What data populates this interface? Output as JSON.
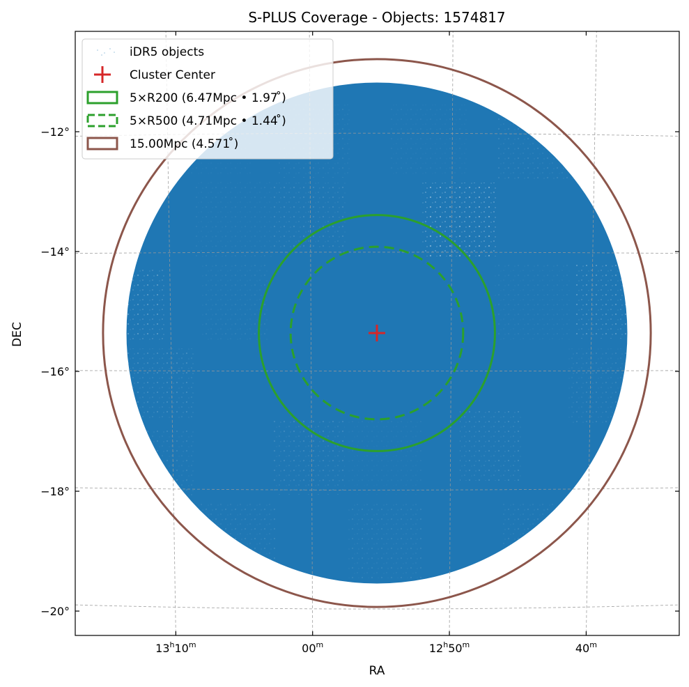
{
  "chart_data": {
    "type": "scatter",
    "title": "S-PLUS Coverage - Objects: 1574817",
    "xlabel": "RA",
    "ylabel": "DEC",
    "projection": "WCS (RA/DEC sky plot)",
    "grid": true,
    "legend_position": "top-left",
    "x_ticks": [
      {
        "main": "13",
        "sup1": "h",
        "min": "10",
        "sup2": "m",
        "ra_min": 790
      },
      {
        "main": "",
        "sup1": "",
        "min": "00",
        "sup2": "m",
        "ra_min": 780
      },
      {
        "main": "12",
        "sup1": "h",
        "min": "50",
        "sup2": "m",
        "ra_min": 770
      },
      {
        "main": "",
        "sup1": "",
        "min": "40",
        "sup2": "m",
        "ra_min": 760
      }
    ],
    "y_ticks": [
      {
        "label": "−12°",
        "dec": -12
      },
      {
        "label": "−14°",
        "dec": -14
      },
      {
        "label": "−16°",
        "dec": -16
      },
      {
        "label": "−18°",
        "dec": -18
      },
      {
        "label": "−20°",
        "dec": -20
      }
    ],
    "cluster_center": {
      "ra_min": 775.3,
      "dec": -15.36
    },
    "coverage": {
      "ra_min": 775.3,
      "dec": -15.36,
      "radius_deg": 4.18
    },
    "circles": [
      {
        "key": "r200",
        "radius_deg": 1.97,
        "style": "solid",
        "color": "#2ca02c"
      },
      {
        "key": "r500",
        "radius_deg": 1.44,
        "style": "dashed",
        "color": "#2ca02c"
      },
      {
        "key": "r15",
        "radius_deg": 4.571,
        "style": "solid",
        "color": "#8c564b"
      }
    ],
    "series": [
      {
        "name": "iDR5 objects",
        "count": 1574817,
        "color": "#1f77b4"
      },
      {
        "name": "Cluster Center",
        "color": "#d62728"
      }
    ],
    "legend": [
      {
        "label": "iDR5 objects",
        "kind": "points",
        "color": "#1f77b4"
      },
      {
        "label": "Cluster Center",
        "kind": "plus",
        "color": "#d62728"
      },
      {
        "label": "5×R200 (6.47Mpc • 1.97$^\\circ$)",
        "kind": "rect-solid",
        "color": "#2ca02c"
      },
      {
        "label": "5×R500 (4.71Mpc • 1.44$^\\circ$)",
        "kind": "rect-dashed",
        "color": "#2ca02c"
      },
      {
        "label": "15.00Mpc (4.571$^\\circ$)",
        "kind": "rect-solid",
        "color": "#8c564b"
      }
    ],
    "legend_display": [
      "iDR5 objects",
      "Cluster Center",
      "5×R200 (6.47Mpc • 1.97 ̊)",
      "5×R500 (4.71Mpc • 1.44 ̊)",
      "15.00Mpc (4.571 ̊)"
    ]
  }
}
